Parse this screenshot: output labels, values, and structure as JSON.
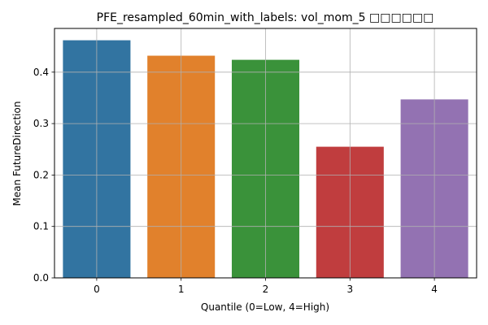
{
  "chart_data": {
    "type": "bar",
    "title": "PFE_resampled_60min_with_labels: vol_mom_5 □□□□□□",
    "xlabel": "Quantile (0=Low, 4=High)",
    "ylabel": "Mean FutureDirection",
    "categories": [
      "0",
      "1",
      "2",
      "3",
      "4"
    ],
    "values": [
      0.462,
      0.432,
      0.424,
      0.255,
      0.347
    ],
    "colors": [
      "#3274a1",
      "#e1812c",
      "#3a923a",
      "#c03d3e",
      "#9372b2"
    ],
    "ylim": [
      0,
      0.485
    ],
    "yticks": [
      0.0,
      0.1,
      0.2,
      0.3,
      0.4
    ],
    "ytick_labels": [
      "0.0",
      "0.1",
      "0.2",
      "0.3",
      "0.4"
    ],
    "grid": true
  }
}
